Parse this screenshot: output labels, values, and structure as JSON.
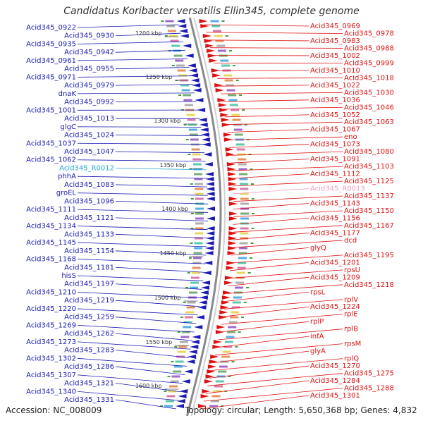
{
  "title": "Candidatus Koribacter versatilis Ellin345, complete genome",
  "accession": "Accession: NC_008009",
  "topology": "Topology: circular; Length: 5,650,368 bp; Genes: 4,832",
  "colors": {
    "left_genes": "#1a1ab4",
    "right_genes": "#e01010",
    "rna_left": "#29a9d6",
    "rna_right": "#f0a0c8",
    "backbone": "#8a8a8a"
  },
  "position_markers": [
    "1200 kbp",
    "1250 kbp",
    "1300 kbp",
    "1350 kbp",
    "1400 kbp",
    "1450 kbp",
    "1500 kbp",
    "1550 kbp",
    "1600 kbp"
  ],
  "left_labels": [
    "Acid345_0922",
    "Acid345_0930",
    "Acid345_0935",
    "Acid345_0942",
    "Acid345_0961",
    "Acid345_0955",
    "Acid345_0971",
    "Acid345_0979",
    "dnaK",
    "Acid345_0992",
    "Acid345_1001",
    "Acid345_1013",
    "glgC",
    "Acid345_1024",
    "Acid345_1037",
    "Acid345_1047",
    "Acid345_1062",
    "Acid345_R0012",
    "phhA",
    "Acid345_1083",
    "groEL",
    "Acid345_1096",
    "Acid345_1111",
    "Acid345_1121",
    "Acid345_1134",
    "Acid345_1133",
    "Acid345_1145",
    "Acid345_1154",
    "Acid345_1168",
    "Acid345_1181",
    "hisS",
    "Acid345_1197",
    "Acid345_1210",
    "Acid345_1219",
    "Acid345_1220",
    "Acid345_1259",
    "Acid345_1269",
    "Acid345_1262",
    "Acid345_1273",
    "Acid345_1283",
    "Acid345_1302",
    "Acid345_1286",
    "Acid345_1307",
    "Acid345_1321",
    "Acid345_1340",
    "Acid345_1331"
  ],
  "right_labels": [
    "Acid345_0969",
    "Acid345_0978",
    "Acid345_0983",
    "Acid345_0988",
    "Acid345_1002",
    "Acid345_0999",
    "Acid345_1010",
    "Acid345_1018",
    "Acid345_1022",
    "Acid345_1030",
    "Acid345_1036",
    "Acid345_1046",
    "Acid345_1052",
    "Acid345_1063",
    "Acid345_1067",
    "eno",
    "Acid345_1073",
    "Acid345_1080",
    "Acid345_1091",
    "Acid345_1103",
    "Acid345_1112",
    "Acid345_1125",
    "Acid345_R0013",
    "Acid345_1137",
    "Acid345_1143",
    "Acid345_1150",
    "Acid345_1156",
    "Acid345_1167",
    "Acid345_1177",
    "dcd",
    "glyQ",
    "Acid345_1195",
    "Acid345_1201",
    "rpsU",
    "Acid345_1209",
    "Acid345_1218",
    "rpsL",
    "rplV",
    "Acid345_1224",
    "rplE",
    "rplP",
    "rplB",
    "infA",
    "rpsM",
    "glyA",
    "rplQ",
    "Acid345_1270",
    "Acid345_1275",
    "Acid345_1284",
    "Acid345_1288",
    "Acid345_1301"
  ]
}
